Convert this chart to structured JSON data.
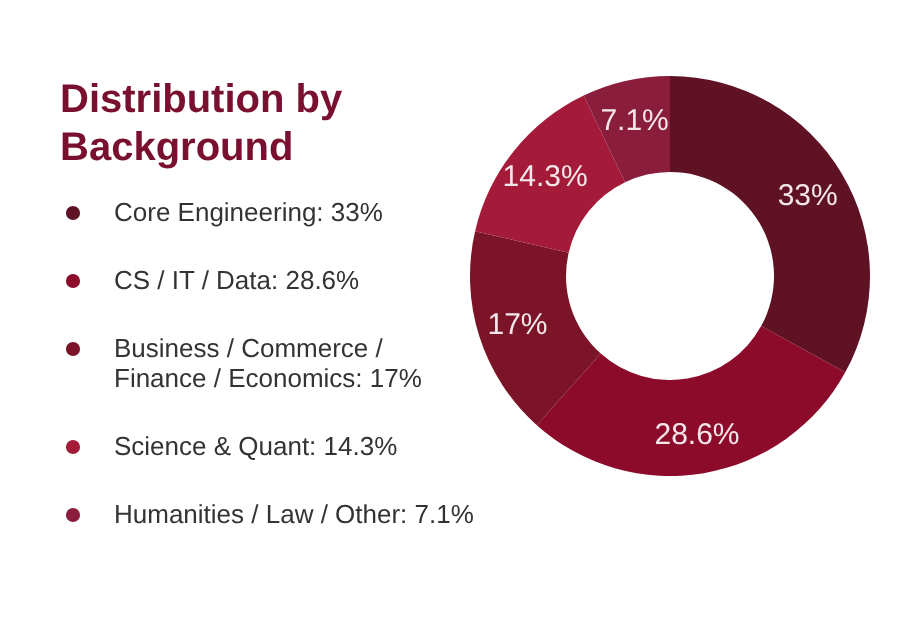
{
  "chart_data": {
    "type": "donut",
    "title": "Distribution by Background",
    "categories": [
      "Core Engineering",
      "CS / IT / Data",
      "Business / Commerce / Finance / Economics",
      "Science & Quant",
      "Humanities / Law / Other"
    ],
    "values": [
      33,
      28.6,
      17,
      14.3,
      7.1
    ],
    "value_labels": [
      "33%",
      "28.6%",
      "17%",
      "14.3%",
      "7.1%"
    ],
    "colors": [
      "#5e1224",
      "#8c0a2a",
      "#7a1426",
      "#a31b38",
      "#8a1d3c"
    ],
    "legend": "left"
  }
}
